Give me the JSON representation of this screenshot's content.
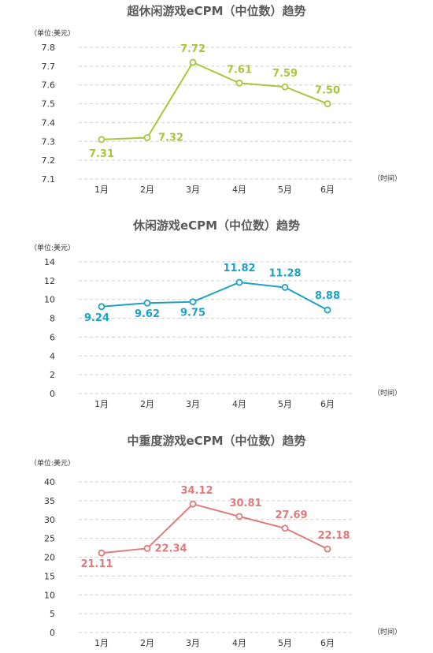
{
  "chart_data": [
    {
      "type": "line",
      "title": "超休闲游戏eCPM（中位数）趋势",
      "ylabel": "（单位:美元）",
      "xlabel": "（时间）",
      "categories": [
        "1月",
        "2月",
        "3月",
        "4月",
        "5月",
        "6月"
      ],
      "values": [
        7.31,
        7.32,
        7.72,
        7.61,
        7.59,
        7.5
      ],
      "labels": [
        "7.31",
        "7.32",
        "7.72",
        "7.61",
        "7.59",
        "7.50"
      ],
      "ylim": [
        7.1,
        7.8
      ],
      "yticks": [
        "7.1",
        "7.2",
        "7.3",
        "7.4",
        "7.5",
        "7.6",
        "7.7",
        "7.8"
      ],
      "color": "#a9c63a",
      "grid": true
    },
    {
      "type": "line",
      "title": "休闲游戏eCPM（中位数）趋势",
      "ylabel": "（单位:美元）",
      "xlabel": "（时间）",
      "categories": [
        "1月",
        "2月",
        "3月",
        "4月",
        "5月",
        "6月"
      ],
      "values": [
        9.24,
        9.62,
        9.75,
        11.82,
        11.28,
        8.88
      ],
      "labels": [
        "9.24",
        "9.62",
        "9.75",
        "11.82",
        "11.28",
        "8.88"
      ],
      "ylim": [
        0,
        14
      ],
      "yticks": [
        "0",
        "2",
        "4",
        "6",
        "8",
        "10",
        "12",
        "14"
      ],
      "color": "#1aa3c4",
      "grid": true
    },
    {
      "type": "line",
      "title": "中重度游戏eCPM（中位数）趋势",
      "ylabel": "（单位:美元）",
      "xlabel": "（时间）",
      "categories": [
        "1月",
        "2月",
        "3月",
        "4月",
        "5月",
        "6月"
      ],
      "values": [
        21.11,
        22.34,
        34.12,
        30.81,
        27.69,
        22.18
      ],
      "labels": [
        "21.11",
        "22.34",
        "34.12",
        "30.81",
        "27.69",
        "22.18"
      ],
      "ylim": [
        0,
        40
      ],
      "yticks": [
        "0",
        "5",
        "10",
        "15",
        "20",
        "25",
        "30",
        "35",
        "40"
      ],
      "color": "#e07b7b",
      "grid": true
    }
  ]
}
